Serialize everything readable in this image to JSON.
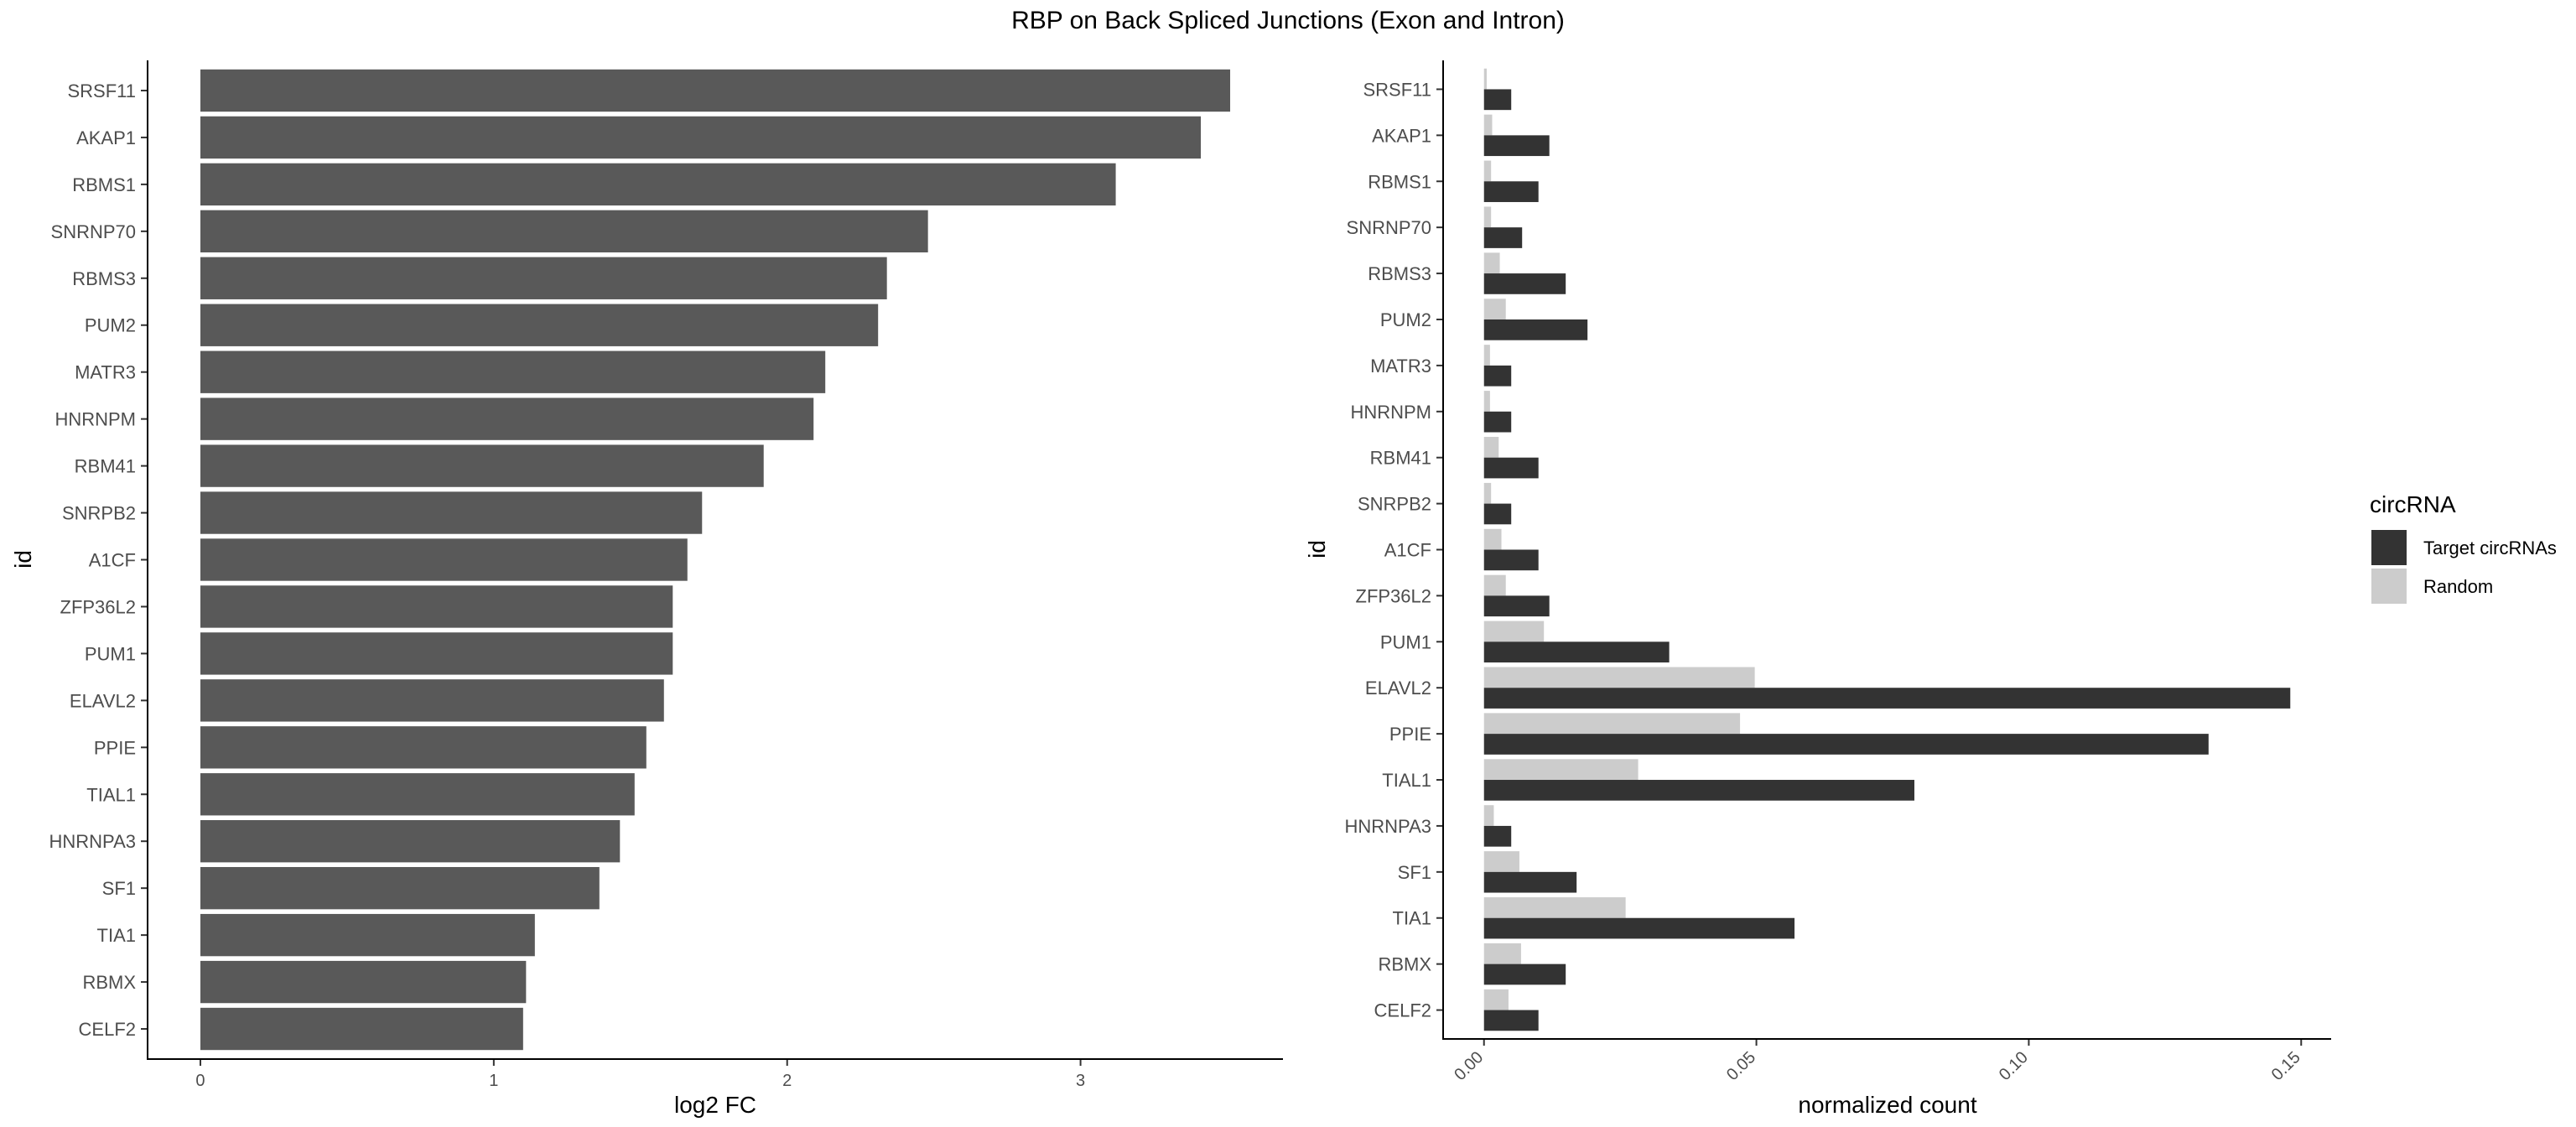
{
  "figure": {
    "title": "RBP on Back Spliced Junctions (Exon and Intron)"
  },
  "chart_data": [
    {
      "type": "bar",
      "orientation": "horizontal",
      "categories": [
        "SRSF11",
        "AKAP1",
        "RBMS1",
        "SNRNP70",
        "RBMS3",
        "PUM2",
        "MATR3",
        "HNRNPM",
        "RBM41",
        "SNRPB2",
        "A1CF",
        "ZFP36L2",
        "PUM1",
        "ELAVL2",
        "PPIE",
        "TIAL1",
        "HNRNPA3",
        "SF1",
        "TIA1",
        "RBMX",
        "CELF2"
      ],
      "values": [
        3.51,
        3.41,
        3.12,
        2.48,
        2.34,
        2.31,
        2.13,
        2.09,
        1.92,
        1.71,
        1.66,
        1.61,
        1.61,
        1.58,
        1.52,
        1.48,
        1.43,
        1.36,
        1.14,
        1.11,
        1.1
      ],
      "xlabel": "log2 FC",
      "ylabel": "id",
      "xlim": [
        -0.18,
        3.69
      ],
      "xticks": [
        "0",
        "1",
        "2",
        "3"
      ],
      "bar_color": "#595959",
      "grid": false
    },
    {
      "type": "bar",
      "orientation": "horizontal",
      "position": "dodge",
      "categories": [
        "SRSF11",
        "AKAP1",
        "RBMS1",
        "SNRNP70",
        "RBMS3",
        "PUM2",
        "MATR3",
        "HNRNPM",
        "RBM41",
        "SNRPB2",
        "A1CF",
        "ZFP36L2",
        "PUM1",
        "ELAVL2",
        "PPIE",
        "TIAL1",
        "HNRNPA3",
        "SF1",
        "TIA1",
        "RBMX",
        "CELF2"
      ],
      "series": [
        {
          "name": "Target circRNAs",
          "color": "#333333",
          "values": [
            0.005,
            0.012,
            0.01,
            0.007,
            0.015,
            0.019,
            0.005,
            0.005,
            0.01,
            0.005,
            0.01,
            0.012,
            0.034,
            0.148,
            0.133,
            0.079,
            0.005,
            0.017,
            0.057,
            0.015,
            0.01
          ]
        },
        {
          "name": "Random",
          "color": "#cccccc",
          "values": [
            0.0005,
            0.0015,
            0.0013,
            0.0013,
            0.0029,
            0.004,
            0.0011,
            0.0011,
            0.0027,
            0.0013,
            0.0032,
            0.004,
            0.011,
            0.0497,
            0.047,
            0.0283,
            0.0018,
            0.0065,
            0.026,
            0.0068,
            0.0045
          ]
        }
      ],
      "xlabel": "normalized count",
      "ylabel": "id",
      "xlim": [
        -0.0075,
        0.1555
      ],
      "xticks": [
        "0.00",
        "0.05",
        "0.10",
        "0.15"
      ],
      "xtick_rotation": 45,
      "legend": {
        "title": "circRNA",
        "placement": "right"
      },
      "grid": false
    }
  ]
}
